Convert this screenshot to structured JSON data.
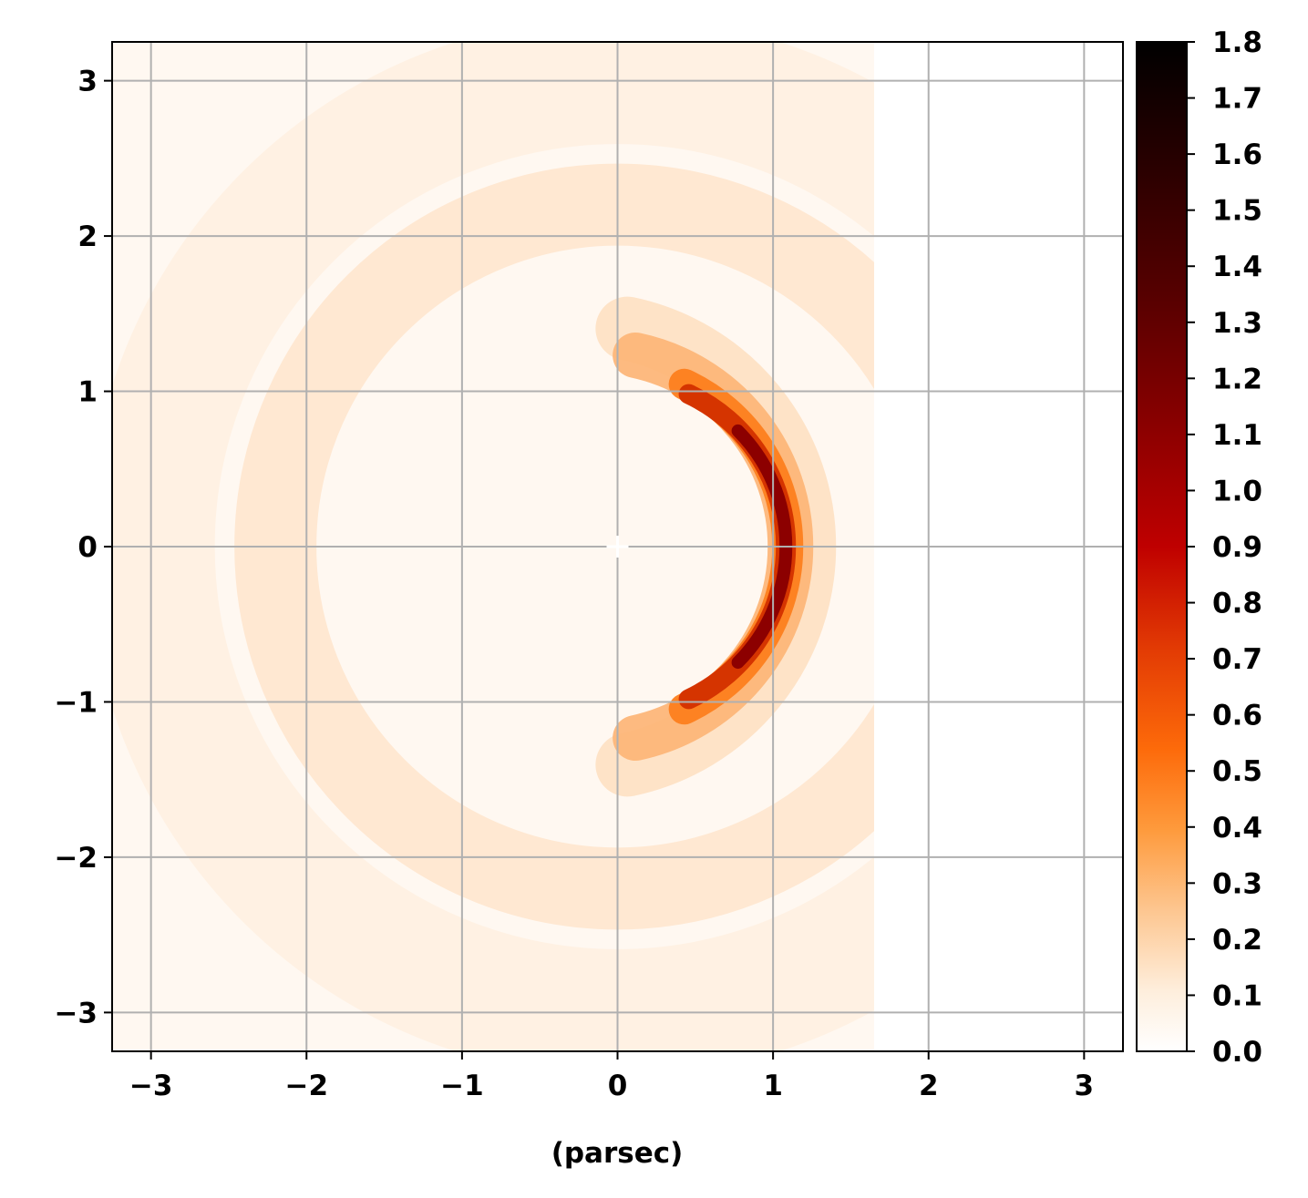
{
  "chart_data": {
    "type": "heatmap",
    "title": "",
    "xlabel": "(parsec)",
    "ylabel": "",
    "xlim": [
      -3.25,
      3.25
    ],
    "ylim": [
      -3.25,
      3.25
    ],
    "x_ticks": [
      -3,
      -2,
      -1,
      0,
      1,
      2,
      3
    ],
    "y_ticks": [
      -3,
      -2,
      -1,
      0,
      1,
      2,
      3
    ],
    "x_tick_labels": [
      "−3",
      "−2",
      "−1",
      "0",
      "1",
      "2",
      "3"
    ],
    "y_tick_labels": [
      "−3",
      "−2",
      "−1",
      "0",
      "1",
      "2",
      "3"
    ],
    "grid": true,
    "colormap": "gist_heat_r",
    "colorbar": {
      "range": [
        0.0,
        1.8
      ],
      "ticks": [
        0.0,
        0.1,
        0.2,
        0.3,
        0.4,
        0.5,
        0.6,
        0.7,
        0.8,
        0.9,
        1.0,
        1.1,
        1.2,
        1.3,
        1.4,
        1.5,
        1.6,
        1.7,
        1.8
      ],
      "tick_labels": [
        "0.0",
        "0.1",
        "0.2",
        "0.3",
        "0.4",
        "0.5",
        "0.6",
        "0.7",
        "0.8",
        "0.9",
        "1.0",
        "1.1",
        "1.2",
        "1.3",
        "1.4",
        "1.5",
        "1.6",
        "1.7",
        "1.8"
      ]
    },
    "structure": {
      "shape": "crescent shell centered at origin, bright on +x side",
      "shell_radius": 1.2,
      "peak_value": 1.2,
      "data_extent_x": [
        -3.25,
        1.65
      ],
      "marker": {
        "x": 0,
        "y": 0,
        "symbol": "+",
        "color": "#ffffff"
      }
    }
  }
}
